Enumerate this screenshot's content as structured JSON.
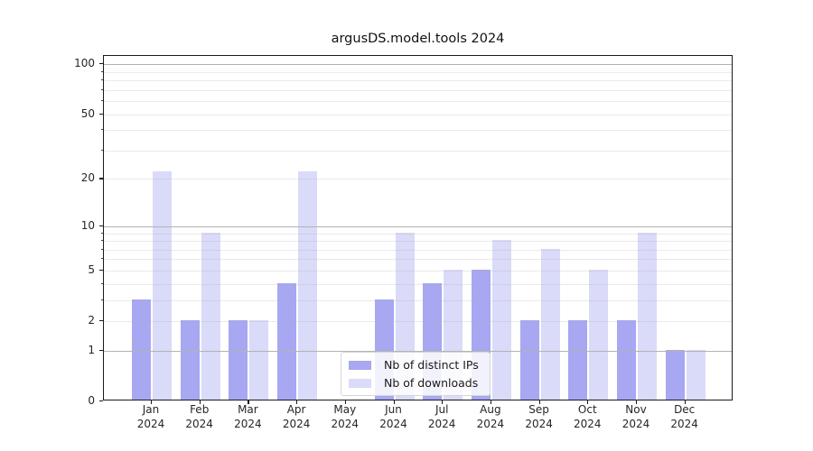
{
  "header": {
    "title": "argusDS.model.tools 2024"
  },
  "chart_data": {
    "type": "bar",
    "title": "argusDS.model.tools 2024",
    "categories": [
      "Jan",
      "Feb",
      "Mar",
      "Apr",
      "May",
      "Jun",
      "Jul",
      "Aug",
      "Sep",
      "Oct",
      "Nov",
      "Dec"
    ],
    "tick_year_label": "2024",
    "series": [
      {
        "name": "Nb of distinct IPs",
        "color": "#a7a7f2",
        "values": [
          3,
          2,
          2,
          4,
          0,
          3,
          4,
          5,
          2,
          2,
          2,
          1
        ]
      },
      {
        "name": "Nb of downloads",
        "color": "#dadaf9",
        "values": [
          22,
          9,
          2,
          22,
          0,
          9,
          5,
          8,
          7,
          5,
          9,
          1
        ]
      }
    ],
    "xlabel": "",
    "ylabel": "",
    "yscale": "log1p",
    "yticks": [
      0,
      1,
      2,
      5,
      10,
      20,
      50,
      100
    ],
    "ylim": [
      0,
      113
    ],
    "grid": true,
    "gridlines_major": [
      1,
      10,
      100
    ],
    "gridlines_minor": [
      2,
      3,
      4,
      5,
      6,
      7,
      8,
      9,
      20,
      30,
      40,
      50,
      60,
      70,
      80,
      90
    ],
    "legend_position": "lower center",
    "colors": {
      "spine": "#1a1a1a",
      "grid_major": "#b3b3b3",
      "text": "#262626",
      "background": "#ffffff"
    }
  }
}
